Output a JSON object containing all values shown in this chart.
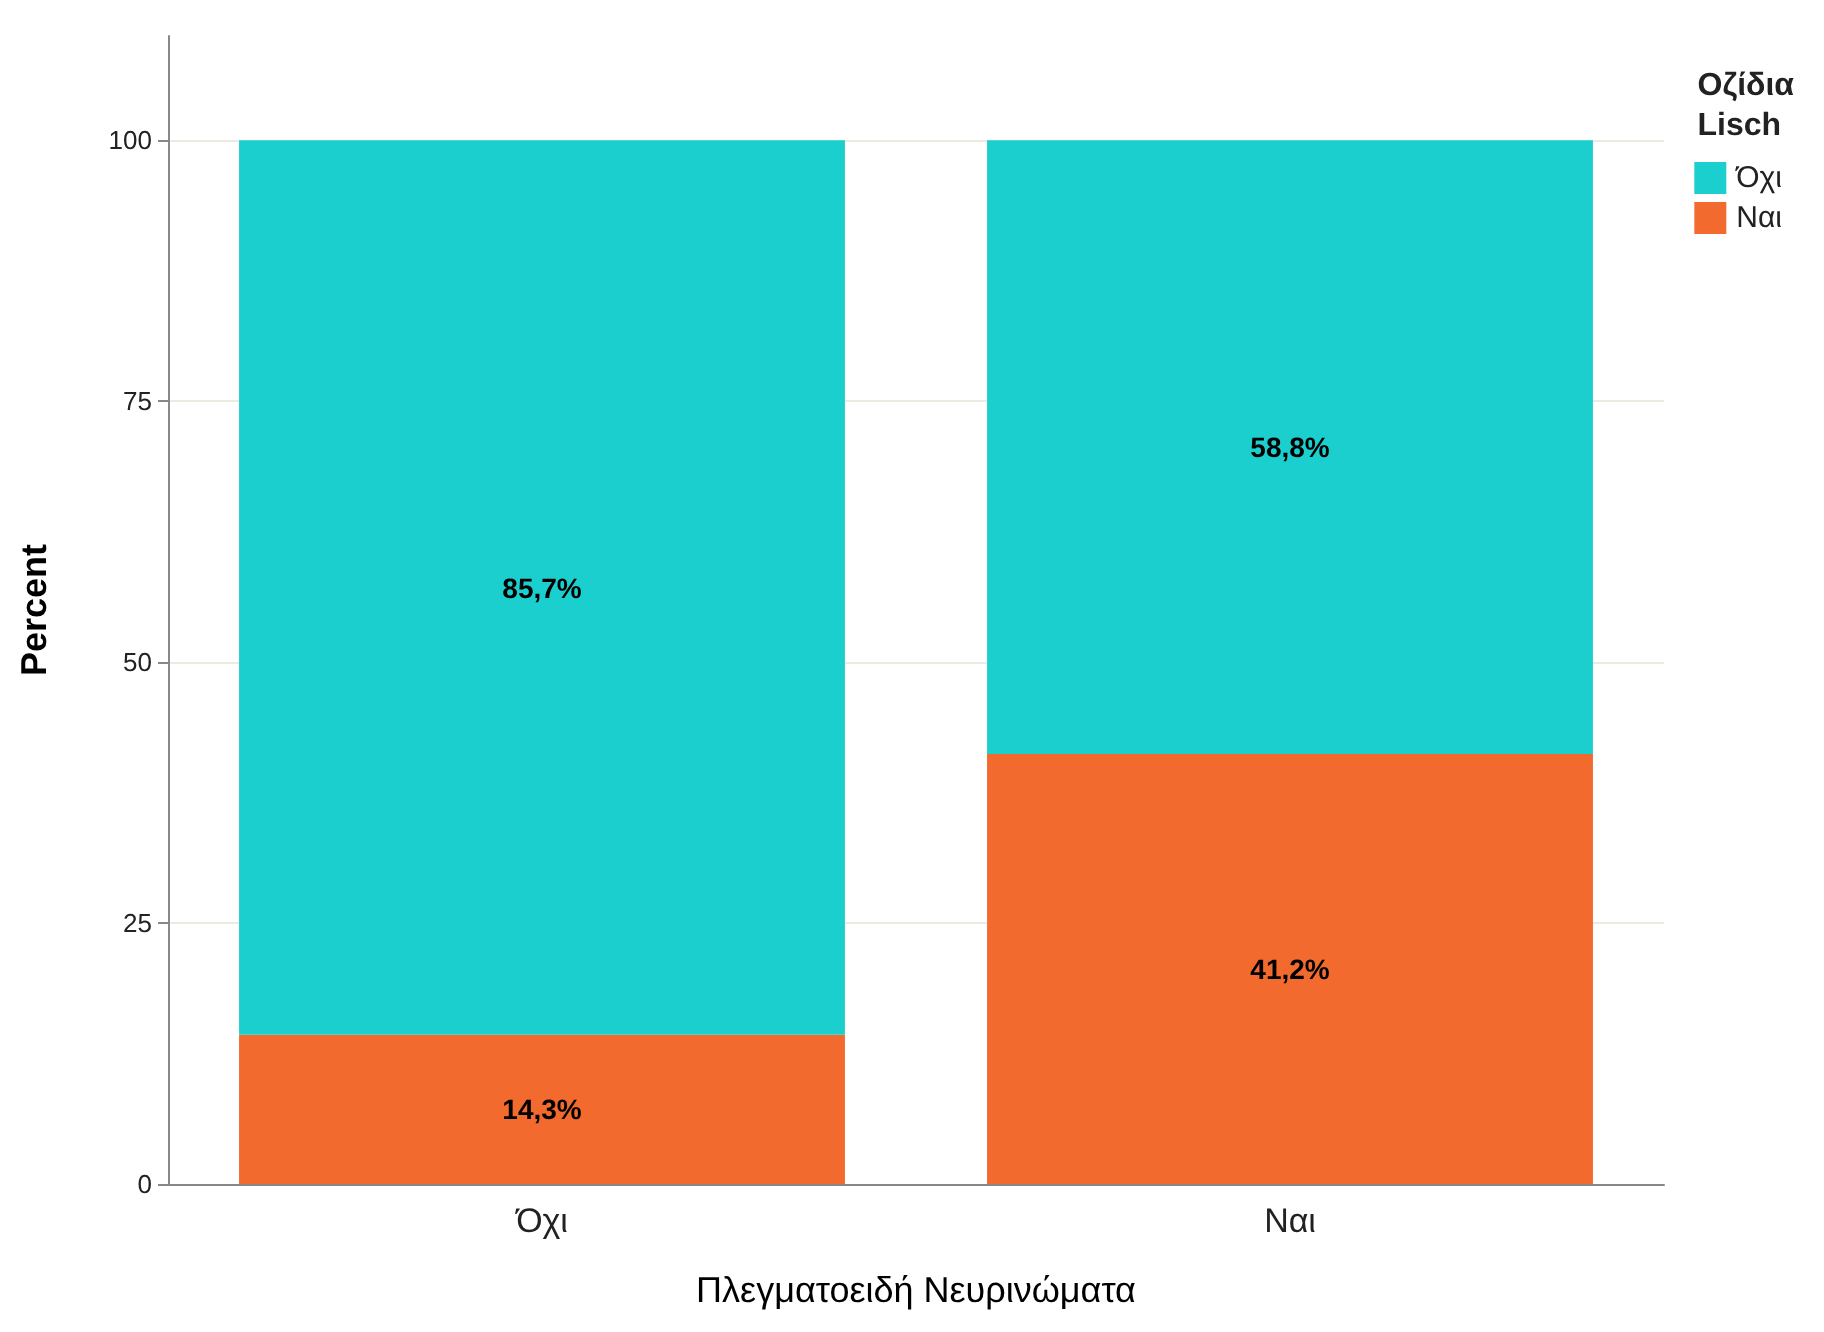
{
  "chart_data": {
    "type": "bar",
    "stacked": true,
    "xlabel": "Πλεγματοειδή Νευρινώματα",
    "ylabel": "Percent",
    "legend_title": "Οζίδια Lisch",
    "categories": [
      "Όχι",
      "Ναι"
    ],
    "series": [
      {
        "name": "Ναι",
        "color": "#f26a2e",
        "values": [
          14.3,
          41.2
        ],
        "value_labels": [
          "14,3%",
          "41,2%"
        ]
      },
      {
        "name": "Όχι",
        "color": "#1ccfcf",
        "values": [
          85.7,
          58.8
        ],
        "value_labels": [
          "85,7%",
          "58,8%"
        ]
      }
    ],
    "ylim": [
      0,
      110
    ],
    "yticks": [
      0,
      25,
      50,
      75,
      100
    ],
    "grid": "y",
    "legend": "top right"
  }
}
